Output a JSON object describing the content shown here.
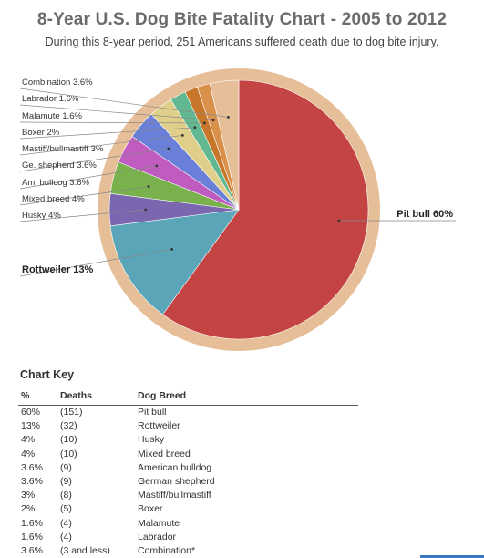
{
  "header": {
    "title": "8-Year U.S. Dog Bite Fatality Chart - 2005 to 2012",
    "subtitle": "During this 8-year period, 251 Americans suffered death due to dog bite injury."
  },
  "chart_data": {
    "type": "pie",
    "title": "8-Year U.S. Dog Bite Fatality Chart - 2005 to 2012",
    "slices": [
      {
        "label": "Pit bull 60%",
        "value": 60,
        "color": "#c44444"
      },
      {
        "label": "Rottweiler 13%",
        "value": 13,
        "color": "#5aa6b8"
      },
      {
        "label": "Husky 4%",
        "value": 4,
        "color": "#7b66b0"
      },
      {
        "label": "Mixed breed 4%",
        "value": 4,
        "color": "#79b14d"
      },
      {
        "label": "Am. bullcog 3.6%",
        "value": 3.6,
        "color": "#c05cc0"
      },
      {
        "label": "Ge. shepherd 3.6%",
        "value": 3.6,
        "color": "#6a7fd8"
      },
      {
        "label": "Mastiff/bullmastiff 3%",
        "value": 3,
        "color": "#e0cf8a"
      },
      {
        "label": "Boxer 2%",
        "value": 2,
        "color": "#62b890"
      },
      {
        "label": "Malamute 1.6%",
        "value": 1.6,
        "color": "#c8762a"
      },
      {
        "label": "Labrador 1.6%",
        "value": 1.6,
        "color": "#d8904a"
      },
      {
        "label": "Combination 3.6%",
        "value": 3.6,
        "color": "#e6bf98"
      }
    ],
    "ring_color": "#e6bf98"
  },
  "key": {
    "title": "Chart Key",
    "headers": [
      "%",
      "Deaths",
      "Dog Breed"
    ],
    "rows": [
      [
        "60%",
        "(151)",
        "Pit bull"
      ],
      [
        "13%",
        "(32)",
        "Rottweiler"
      ],
      [
        "4%",
        "(10)",
        "Husky"
      ],
      [
        "4%",
        "(10)",
        "Mixed breed"
      ],
      [
        "3.6%",
        "(9)",
        "American bulldog"
      ],
      [
        "3.6%",
        "(9)",
        "German shepherd"
      ],
      [
        "3%",
        "(8)",
        "Mastiff/bullmastiff"
      ],
      [
        "2%",
        "(5)",
        "Boxer"
      ],
      [
        "1.6%",
        "(4)",
        "Malamute"
      ],
      [
        "1.6%",
        "(4)",
        "Labrador"
      ],
      [
        "3.6%",
        "(3 and less)",
        "Combination*"
      ]
    ]
  }
}
